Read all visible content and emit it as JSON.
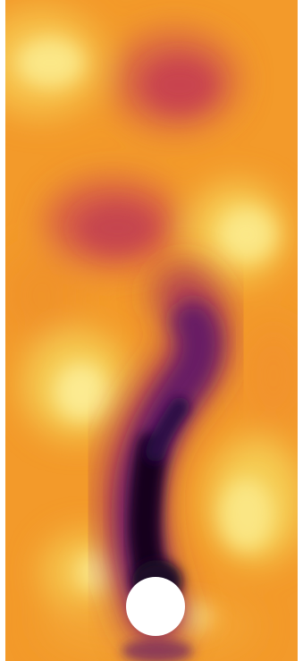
{
  "figure": {
    "kind": "flow-field-visualization",
    "colormap": "inferno-like",
    "background_color": "#ffffff",
    "field_base_color": "#f39a2a",
    "palette": {
      "dark": "#14061f",
      "deep_purple": "#3d0f5e",
      "purple": "#6a2468",
      "magenta_red": "#c8474e",
      "orange": "#f29629",
      "light_yellow": "#f6df6b",
      "pale_yellow": "#fdf2b0",
      "obstacle": "#ffffff"
    }
  }
}
